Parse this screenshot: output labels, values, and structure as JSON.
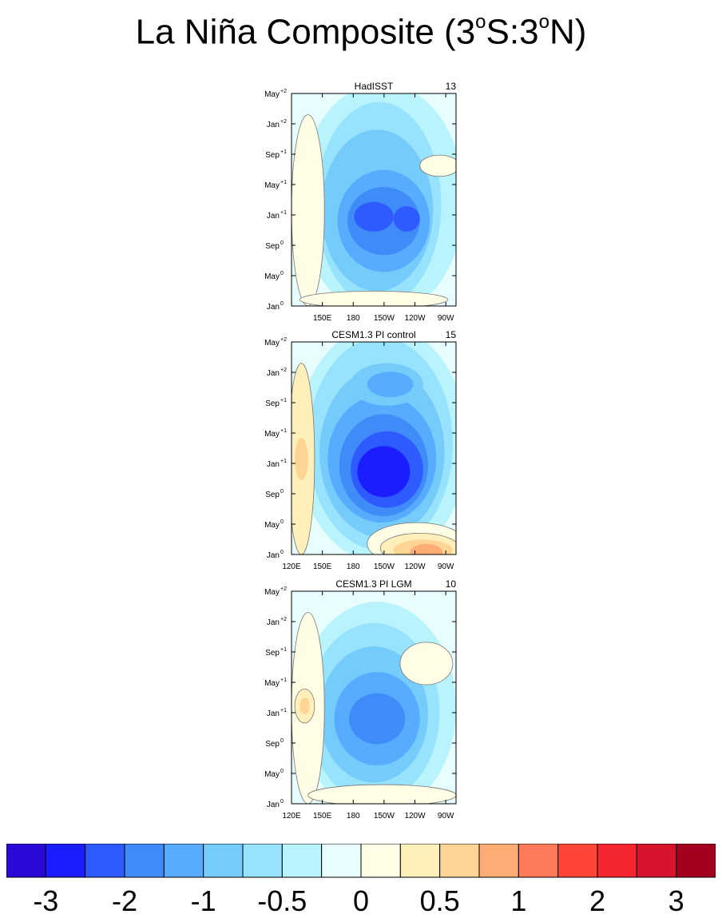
{
  "title": {
    "main": "La Niña Composite (3",
    "deg1": "o",
    "mid": "S:3",
    "deg2": "o",
    "end": "N)"
  },
  "chart_data": [
    {
      "type": "heatmap",
      "panel_title": "HadISST",
      "count": "13",
      "xticks": [
        "150E",
        "180",
        "150W",
        "120W",
        "90W"
      ],
      "yticks": [
        {
          "base": "Jan",
          "sup": "0"
        },
        {
          "base": "May",
          "sup": "0"
        },
        {
          "base": "Sep",
          "sup": "0"
        },
        {
          "base": "Jan",
          "sup": "+1"
        },
        {
          "base": "May",
          "sup": "+1"
        },
        {
          "base": "Sep",
          "sup": "+1"
        },
        {
          "base": "Jan",
          "sup": "+2"
        },
        {
          "base": "May",
          "sup": "+2"
        }
      ]
    },
    {
      "type": "heatmap",
      "panel_title": "CESM1.3 PI control",
      "count": "15",
      "xticks": [
        "120E",
        "150E",
        "180",
        "150W",
        "120W",
        "90W"
      ],
      "yticks": [
        {
          "base": "Jan",
          "sup": "0"
        },
        {
          "base": "May",
          "sup": "0"
        },
        {
          "base": "Sep",
          "sup": "0"
        },
        {
          "base": "Jan",
          "sup": "+1"
        },
        {
          "base": "May",
          "sup": "+1"
        },
        {
          "base": "Sep",
          "sup": "+1"
        },
        {
          "base": "Jan",
          "sup": "+2"
        },
        {
          "base": "May",
          "sup": "+2"
        }
      ]
    },
    {
      "type": "heatmap",
      "panel_title": "CESM1.3 PI LGM",
      "count": "10",
      "xticks": [
        "120E",
        "150E",
        "180",
        "150W",
        "120W",
        "90W"
      ],
      "yticks": [
        {
          "base": "Jan",
          "sup": "0"
        },
        {
          "base": "May",
          "sup": "0"
        },
        {
          "base": "Sep",
          "sup": "0"
        },
        {
          "base": "Jan",
          "sup": "+1"
        },
        {
          "base": "May",
          "sup": "+1"
        },
        {
          "base": "Sep",
          "sup": "+1"
        },
        {
          "base": "Jan",
          "sup": "+2"
        },
        {
          "base": "May",
          "sup": "+2"
        }
      ]
    }
  ],
  "colorbar": {
    "colors": [
      "#2a08d6",
      "#1a1eff",
      "#2e5bff",
      "#3f8bf7",
      "#57acff",
      "#75cbfa",
      "#97e2fc",
      "#b9f4fc",
      "#e8fefe",
      "#fffde6",
      "#fff0bb",
      "#ffd596",
      "#ffad74",
      "#ff7a58",
      "#ff4538",
      "#f42531",
      "#d6142e",
      "#a4001f"
    ],
    "labels": [
      "-3",
      "-2",
      "-1",
      "-0.5",
      "0",
      "0.5",
      "1",
      "2",
      "3"
    ]
  }
}
